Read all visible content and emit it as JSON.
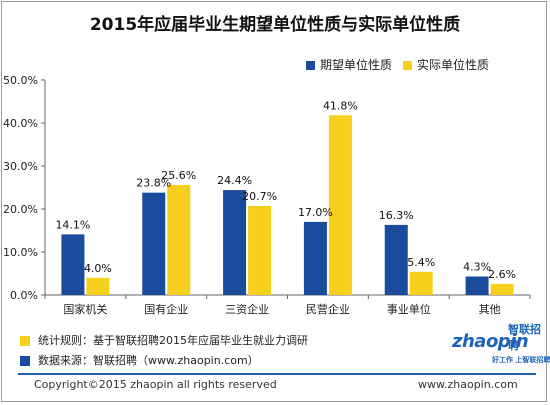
{
  "chart_data": {
    "type": "bar",
    "title": "2015年应届毕业生期望单位性质与实际单位性质",
    "categories": [
      "国家机关",
      "国有企业",
      "三资企业",
      "民营企业",
      "事业单位",
      "其他"
    ],
    "series": [
      {
        "name": "期望单位性质",
        "values": [
          14.1,
          23.8,
          24.4,
          17.0,
          16.3,
          4.3
        ],
        "labels": [
          "14.1%",
          "23.8%",
          "24.4%",
          "17.0%",
          "16.3%",
          "4.3%"
        ],
        "color": "#1a4b9c"
      },
      {
        "name": "实际单位性质",
        "values": [
          4.0,
          25.6,
          20.7,
          41.8,
          5.4,
          2.6
        ],
        "labels": [
          "4.0%",
          "25.6%",
          "20.7%",
          "41.8%",
          "5.4%",
          "2.6%"
        ],
        "color": "#f7cf1d"
      }
    ],
    "ylim": [
      0,
      50
    ],
    "yticks": [
      0,
      10,
      20,
      30,
      40,
      50
    ],
    "ytick_labels": [
      "0.0%",
      "10.0%",
      "20.0%",
      "30.0%",
      "40.0%",
      "50.0%"
    ],
    "grid": false,
    "legend": "top-right"
  },
  "notes": {
    "methodology": "统计规则：基于智联招聘2015年应届毕业生就业力调研",
    "methodology_color": "#f7cf1d",
    "source": "数据来源：智联招聘（www.zhaopin.com）",
    "source_color": "#1a4b9c"
  },
  "logo": {
    "wordmark": "zhaopin",
    "chinese": "智联招聘",
    "slogan": "好工作 上智联招聘",
    "color": "#1e63b5"
  },
  "footer": {
    "copyright": "Copyright©2015 zhaopin all rights reserved",
    "website": "www.zhaopin.com"
  }
}
